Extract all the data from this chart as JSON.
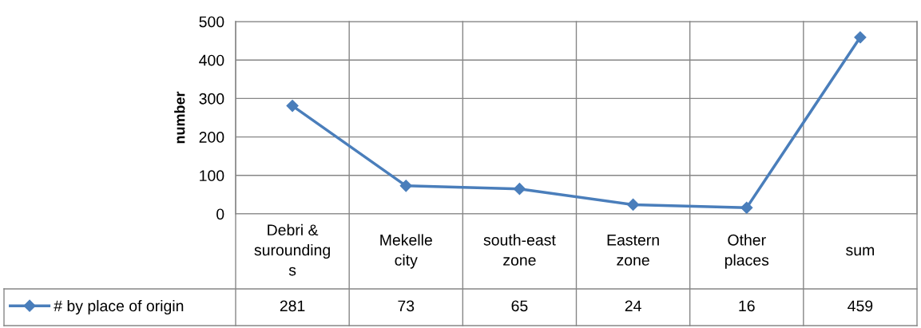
{
  "chart_data": {
    "type": "line",
    "ylabel": "number",
    "categories": [
      "Debri &\nsurounding\ns",
      "Mekelle\ncity",
      "south-east\nzone",
      "Eastern\nzone",
      "Other\nplaces",
      "sum"
    ],
    "series": [
      {
        "name": "# by place of origin",
        "color": "#4a7ebb",
        "values": [
          281,
          73,
          65,
          24,
          16,
          459
        ]
      }
    ],
    "ylim": [
      0,
      500
    ],
    "yticks": [
      0,
      100,
      200,
      300,
      400,
      500
    ],
    "grid": "y",
    "marker": "diamond",
    "line_style": "solid",
    "data_labels": true,
    "legend": "bottom left"
  }
}
